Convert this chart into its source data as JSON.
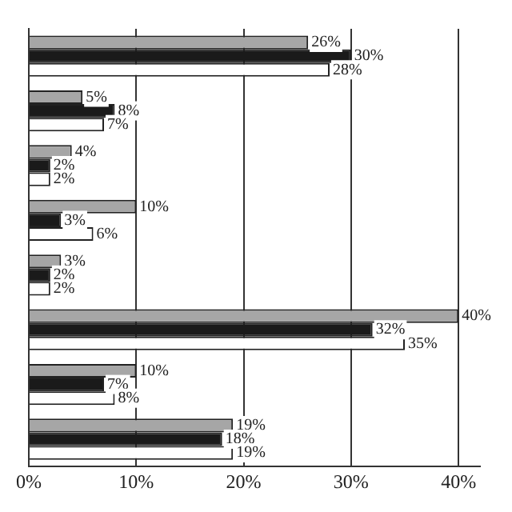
{
  "chart_data": {
    "type": "bar",
    "orientation": "horizontal",
    "categories": [
      null,
      null,
      null,
      null,
      null,
      null,
      null,
      null
    ],
    "series": [
      {
        "color": "#a6a6a6",
        "values": [
          26,
          5,
          4,
          10,
          3,
          40,
          10,
          19
        ],
        "value_labels": [
          "26%",
          "5%",
          "4%",
          "10%",
          "3%",
          "40%",
          "10%",
          "19%"
        ]
      },
      {
        "color": "#1a1a1a",
        "values": [
          30,
          8,
          2,
          3,
          2,
          32,
          7,
          18
        ],
        "value_labels": [
          "30%",
          "8%",
          "2%",
          "3%",
          "2%",
          "32%",
          "7%",
          "18%"
        ]
      },
      {
        "color": "#ffffff",
        "values": [
          28,
          7,
          2,
          6,
          2,
          35,
          8,
          19
        ],
        "value_labels": [
          "28%",
          "7%",
          "2%",
          "6%",
          "2%",
          "35%",
          "8%",
          "19%"
        ]
      }
    ],
    "xlim": [
      0,
      42
    ],
    "xticks": [
      {
        "value": 0,
        "label": "0%"
      },
      {
        "value": 10,
        "label": "10%"
      },
      {
        "value": 20,
        "label": "20%"
      },
      {
        "value": 30,
        "label": "30%"
      },
      {
        "value": 40,
        "label": "40%"
      }
    ],
    "grid": "x",
    "legend": false
  }
}
